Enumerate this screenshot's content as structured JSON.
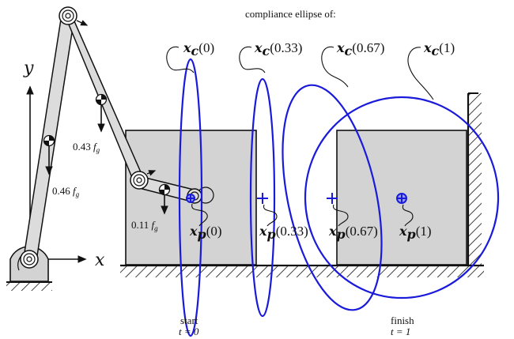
{
  "header": {
    "caption": "compliance ellipse of:"
  },
  "ellipse_labels": [
    {
      "sym": "x",
      "sub": "c",
      "arg": "(0)"
    },
    {
      "sym": "x",
      "sub": "c",
      "arg": "(0.33)"
    },
    {
      "sym": "x",
      "sub": "c",
      "arg": "(0.67)"
    },
    {
      "sym": "x",
      "sub": "c",
      "arg": "(1)"
    }
  ],
  "point_labels": [
    {
      "sym": "x",
      "sub": "p",
      "arg": "(0)"
    },
    {
      "sym": "x",
      "sub": "p",
      "arg": "(0.33)"
    },
    {
      "sym": "x",
      "sub": "p",
      "arg": "(0.67)"
    },
    {
      "sym": "x",
      "sub": "p",
      "arg": "(1)"
    }
  ],
  "forces": [
    {
      "coef": "0.43",
      "sym": "f",
      "sub": "g"
    },
    {
      "coef": "0.46",
      "sym": "f",
      "sub": "g"
    },
    {
      "coef": "0.11",
      "sym": "f",
      "sub": "g"
    }
  ],
  "axes": {
    "x": "x",
    "y": "y"
  },
  "time_labels": {
    "start": {
      "word": "start",
      "eq": "t = 0"
    },
    "finish": {
      "word": "finish",
      "eq": "t = 1"
    }
  },
  "colors": {
    "ellipse": "#1a1adb",
    "box_fill": "#d3d3d3",
    "link_fill": "#dcdcdc",
    "ink": "#111111"
  }
}
